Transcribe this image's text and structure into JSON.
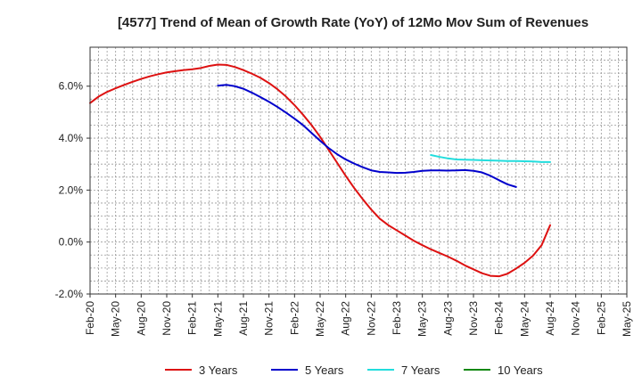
{
  "chart_data": {
    "type": "line",
    "title": "[4577]  Trend of Mean of Growth Rate (YoY) of 12Mo Mov Sum of Revenues",
    "xlabel": "",
    "ylabel": "",
    "ylim": [
      -2.0,
      7.5
    ],
    "y_ticks": [
      -2.0,
      0.0,
      2.0,
      4.0,
      6.0
    ],
    "y_tick_labels": [
      "-2.0%",
      "0.0%",
      "2.0%",
      "4.0%",
      "6.0%"
    ],
    "x_tick_labels": [
      "Feb-20",
      "May-20",
      "Aug-20",
      "Nov-20",
      "Feb-21",
      "May-21",
      "Aug-21",
      "Nov-21",
      "Feb-22",
      "May-22",
      "Aug-22",
      "Nov-22",
      "Feb-23",
      "May-23",
      "Aug-23",
      "Nov-23",
      "Feb-24",
      "May-24",
      "Aug-24",
      "Nov-24",
      "Feb-25",
      "May-25"
    ],
    "grid": true,
    "legend_position": "bottom",
    "series": [
      {
        "name": "3 Years",
        "color": "#dd1111",
        "start_index": 0,
        "values": [
          5.35,
          5.6,
          5.78,
          5.92,
          6.05,
          6.17,
          6.28,
          6.38,
          6.46,
          6.53,
          6.58,
          6.62,
          6.65,
          6.7,
          6.78,
          6.83,
          6.82,
          6.74,
          6.62,
          6.48,
          6.32,
          6.12,
          5.88,
          5.6,
          5.27,
          4.9,
          4.5,
          4.05,
          3.55,
          3.05,
          2.55,
          2.08,
          1.65,
          1.25,
          0.9,
          0.65,
          0.45,
          0.25,
          0.05,
          -0.12,
          -0.28,
          -0.42,
          -0.56,
          -0.72,
          -0.9,
          -1.05,
          -1.2,
          -1.3,
          -1.32,
          -1.22,
          -1.02,
          -0.8,
          -0.52,
          -0.12,
          0.65
        ]
      },
      {
        "name": "5 Years",
        "color": "#0000cc",
        "start_index": 15,
        "values": [
          6.02,
          6.05,
          6.0,
          5.9,
          5.75,
          5.58,
          5.4,
          5.2,
          4.98,
          4.75,
          4.5,
          4.2,
          3.9,
          3.62,
          3.38,
          3.18,
          3.02,
          2.88,
          2.76,
          2.7,
          2.68,
          2.66,
          2.67,
          2.7,
          2.74,
          2.76,
          2.76,
          2.75,
          2.76,
          2.77,
          2.74,
          2.68,
          2.55,
          2.38,
          2.22,
          2.12
        ]
      },
      {
        "name": "7 Years",
        "color": "#22dddd",
        "start_index": 40,
        "values": [
          3.35,
          3.28,
          3.22,
          3.18,
          3.17,
          3.16,
          3.15,
          3.14,
          3.13,
          3.12,
          3.12,
          3.11,
          3.1,
          3.08,
          3.08
        ]
      },
      {
        "name": "10 Years",
        "color": "#118811",
        "start_index": 0,
        "values": []
      }
    ]
  }
}
